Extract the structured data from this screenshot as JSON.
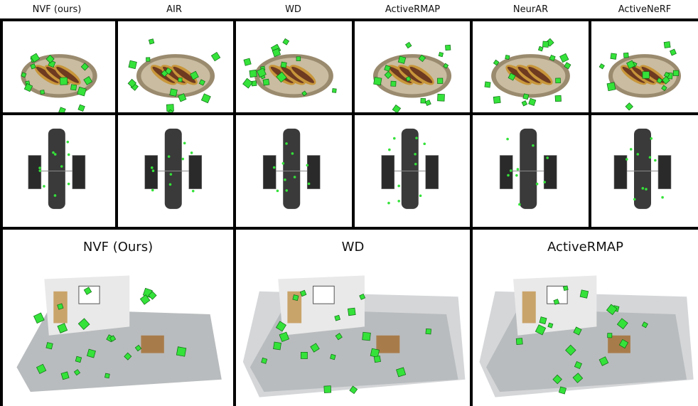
{
  "columns": [
    "NVF (ours)",
    "AIR",
    "WD",
    "ActiveRMAP",
    "NeurAR",
    "ActiveNeRF"
  ],
  "bottom_titles": [
    "NVF (Ours)",
    "WD",
    "ActiveRMAP"
  ],
  "colors": {
    "camera": "#35e23a",
    "camera_edge": "#0b6d12",
    "plate": "#9a8a6e",
    "hotdog": "#c8963a",
    "sausage": "#6e3a20",
    "room_floor": "#b9bcbe",
    "room_wall": "#e9e9e9",
    "noise": "#d4d6d8",
    "hubble": "#3a3a3a"
  }
}
